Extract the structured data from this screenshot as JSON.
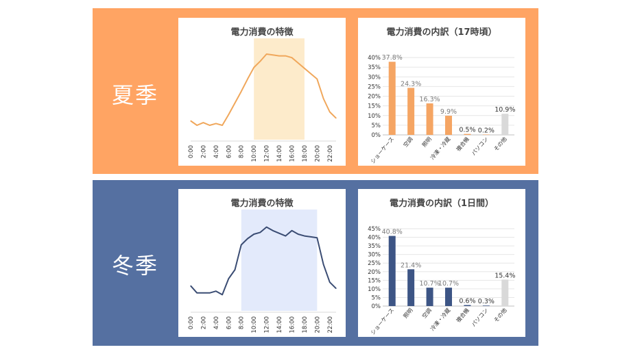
{
  "summer": {
    "label": "夏季",
    "accent": "#F5A563",
    "other_color": "#D9D9D9",
    "highlight_color": "#FDEBCB",
    "line_color": "#F0A75B",
    "line_title": "電力消費の特徴",
    "bar_title": "電力消費の内訳（17時頃）"
  },
  "winter": {
    "label": "冬季",
    "accent": "#3D5585",
    "other_color": "#D9D9D9",
    "highlight_color": "#E3EAFB",
    "line_color": "#3A4C73",
    "line_title": "電力消費の特徴",
    "bar_title": "電力消費の内訳（1日間）"
  },
  "chart_data": [
    {
      "id": "summer-line",
      "type": "line",
      "title": "電力消費の特徴",
      "x": [
        "0:00",
        "1:00",
        "2:00",
        "3:00",
        "4:00",
        "5:00",
        "6:00",
        "7:00",
        "8:00",
        "9:00",
        "10:00",
        "11:00",
        "12:00",
        "13:00",
        "14:00",
        "15:00",
        "16:00",
        "17:00",
        "18:00",
        "19:00",
        "20:00",
        "21:00",
        "22:00",
        "23:00"
      ],
      "x_ticks": [
        "0:00",
        "2:00",
        "4:00",
        "6:00",
        "8:00",
        "10:00",
        "12:00",
        "14:00",
        "16:00",
        "18:00",
        "20:00",
        "22:00"
      ],
      "values": [
        15,
        10,
        13,
        10,
        12,
        10,
        22,
        35,
        48,
        62,
        75,
        82,
        90,
        89,
        88,
        88,
        86,
        80,
        74,
        68,
        62,
        40,
        25,
        18
      ],
      "ylim": [
        0,
        100
      ],
      "highlight": [
        "10:00",
        "18:00"
      ],
      "grid": false
    },
    {
      "id": "summer-bar",
      "type": "bar",
      "title": "電力消費の内訳（17時頃）",
      "categories": [
        "ショーケース",
        "空調",
        "照明",
        "冷凍・冷蔵",
        "複合機",
        "パソコン",
        "その他"
      ],
      "values": [
        37.8,
        24.3,
        16.3,
        9.9,
        0.5,
        0.2,
        10.9
      ],
      "labels": [
        "37.8%",
        "24.3%",
        "16.3%",
        "9.9%",
        "0.5%",
        "0.2%",
        "10.9%"
      ],
      "yticks": [
        "0%",
        "5%",
        "10%",
        "15%",
        "20%",
        "25%",
        "30%",
        "35%",
        "40%"
      ],
      "ylim": [
        0,
        40
      ],
      "grid": true
    },
    {
      "id": "winter-line",
      "type": "line",
      "title": "電力消費の特徴",
      "x": [
        "0:00",
        "1:00",
        "2:00",
        "3:00",
        "4:00",
        "5:00",
        "6:00",
        "7:00",
        "8:00",
        "9:00",
        "10:00",
        "11:00",
        "12:00",
        "13:00",
        "14:00",
        "15:00",
        "16:00",
        "17:00",
        "18:00",
        "19:00",
        "20:00",
        "21:00",
        "22:00",
        "23:00"
      ],
      "x_ticks": [
        "0:00",
        "2:00",
        "4:00",
        "6:00",
        "8:00",
        "10:00",
        "12:00",
        "14:00",
        "16:00",
        "18:00",
        "20:00",
        "22:00"
      ],
      "values": [
        22,
        14,
        14,
        14,
        16,
        12,
        30,
        40,
        68,
        75,
        80,
        82,
        88,
        84,
        81,
        78,
        84,
        80,
        78,
        77,
        76,
        46,
        26,
        19
      ],
      "ylim": [
        0,
        100
      ],
      "highlight": [
        "8:00",
        "20:00"
      ],
      "grid": false
    },
    {
      "id": "winter-bar",
      "type": "bar",
      "title": "電力消費の内訳（1日間）",
      "categories": [
        "ショーケース",
        "照明",
        "空調",
        "冷凍・冷蔵",
        "複合機",
        "パソコン",
        "その他"
      ],
      "values": [
        40.8,
        21.4,
        10.7,
        10.7,
        0.6,
        0.3,
        15.4
      ],
      "labels": [
        "40.8%",
        "21.4%",
        "10.7%",
        "10.7%",
        "0.6%",
        "0.3%",
        "15.4%"
      ],
      "yticks": [
        "0%",
        "5%",
        "10%",
        "15%",
        "20%",
        "25%",
        "30%",
        "35%",
        "40%",
        "45%"
      ],
      "ylim": [
        0,
        45
      ],
      "grid": true
    }
  ]
}
